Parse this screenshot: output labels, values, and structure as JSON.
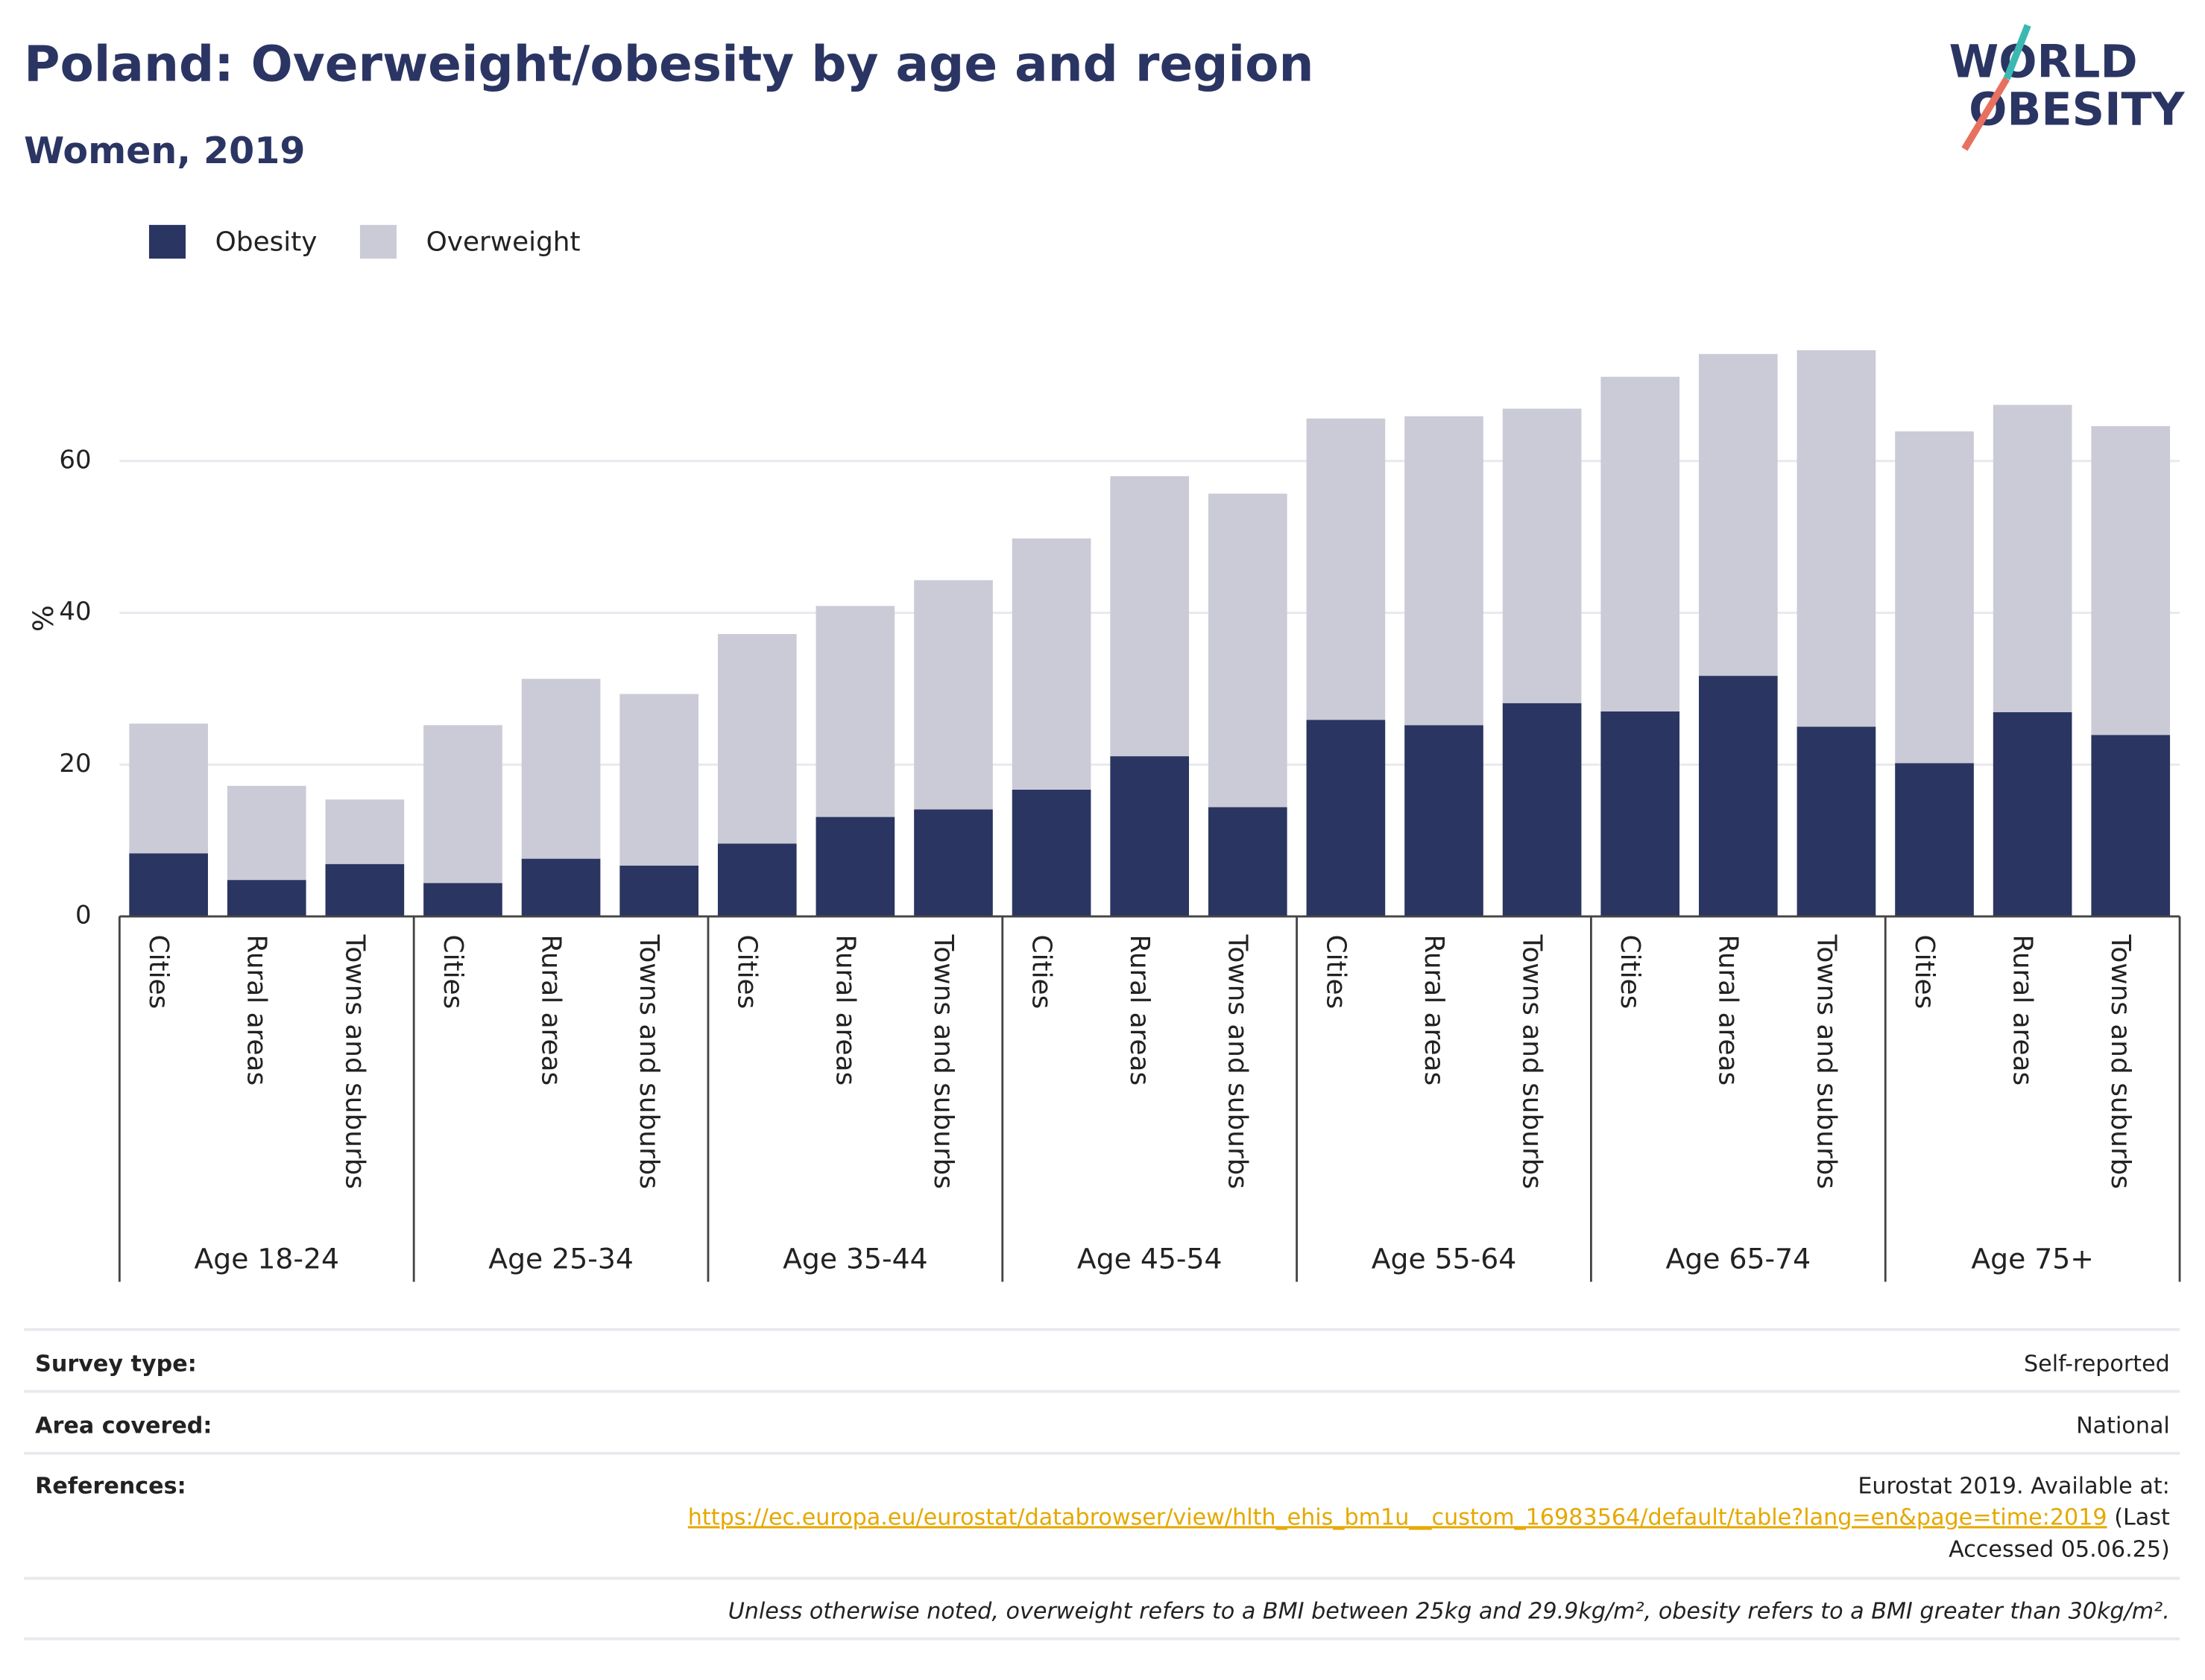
{
  "chart_data": {
    "type": "stacked-bar",
    "title": "Poland: Overweight/obesity by age and region",
    "subtitle": "Women, 2019",
    "logo": [
      "WORLD",
      "OBESITY"
    ],
    "y_label": "%",
    "groups": [
      "Age 18-24",
      "Age 25-34",
      "Age 35-44",
      "Age 45-54",
      "Age 55-64",
      "Age 65-74",
      "Age 75+"
    ],
    "categories": [
      "Cities",
      "Rural areas",
      "Towns and suburbs",
      "Cities",
      "Rural areas",
      "Towns and suburbs",
      "Cities",
      "Rural areas",
      "Towns and suburbs",
      "Cities",
      "Rural areas",
      "Towns and suburbs",
      "Cities",
      "Rural areas",
      "Towns and suburbs",
      "Cities",
      "Rural areas",
      "Towns and suburbs",
      "Cities",
      "Rural areas",
      "Towns and suburbs"
    ],
    "series": [
      {
        "name": "Obesity",
        "color": "#2a3561",
        "values": [
          8.3,
          4.8,
          6.9,
          4.4,
          7.6,
          6.7,
          9.6,
          13.1,
          14.1,
          16.7,
          21.1,
          14.4,
          25.9,
          25.2,
          28.1,
          27.0,
          31.7,
          25.0,
          20.2,
          26.9,
          23.9
        ]
      },
      {
        "name": "Overweight",
        "color": "#cacbd6",
        "values": [
          17.1,
          12.4,
          8.5,
          20.8,
          23.7,
          22.6,
          27.6,
          27.8,
          30.2,
          33.1,
          36.9,
          41.3,
          39.7,
          40.7,
          38.8,
          44.1,
          42.4,
          49.6,
          43.7,
          40.5,
          40.7
        ]
      }
    ],
    "ylim": [
      0,
      80
    ],
    "yticks": [
      0,
      20,
      40,
      60
    ],
    "grid": true,
    "legend": "top-left"
  },
  "footer": {
    "rows": [
      {
        "label": "Survey type:",
        "value": "Self-reported"
      },
      {
        "label": "Area covered:",
        "value": "National"
      },
      {
        "label": "References:",
        "value": "Eurostat 2019. Available at:",
        "link": "https://ec.europa.eu/eurostat/databrowser/view/hlth_ehis_bm1u__custom_16983564/default/table?lang=en&page=time:2019",
        "after": "(Last",
        "after2": "Accessed 05.06.25)"
      }
    ],
    "note": "Unless otherwise noted, overweight refers to a BMI between 25kg and 29.9kg/m², obesity refers to a BMI greater than 30kg/m²."
  }
}
